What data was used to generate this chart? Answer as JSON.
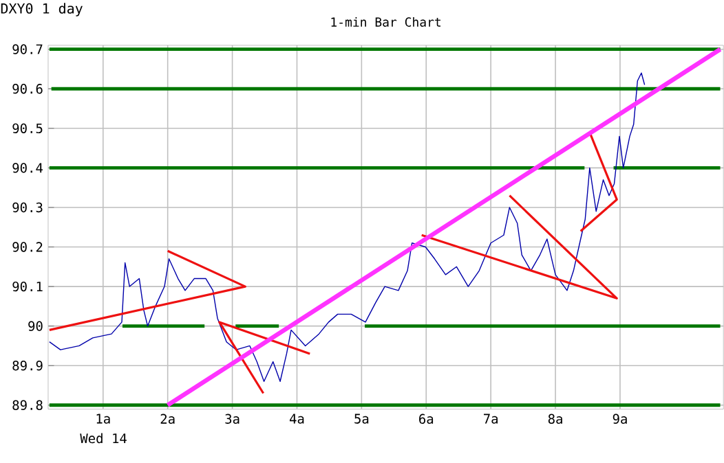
{
  "chart_data": {
    "type": "line",
    "title": "1-min Bar Chart",
    "subtitle": "DXY0 1 day",
    "xlabel": "Wed 14",
    "xlim": [
      0.15,
      10.6
    ],
    "ylim": [
      89.79,
      90.71
    ],
    "xticks": [
      {
        "value": 1,
        "label": "1a"
      },
      {
        "value": 2,
        "label": "2a"
      },
      {
        "value": 3,
        "label": "3a"
      },
      {
        "value": 4,
        "label": "4a"
      },
      {
        "value": 5,
        "label": "5a"
      },
      {
        "value": 6,
        "label": "6a"
      },
      {
        "value": 7,
        "label": "7a"
      },
      {
        "value": 8,
        "label": "8a"
      },
      {
        "value": 9,
        "label": "9a"
      }
    ],
    "yticks": [
      89.8,
      89.9,
      90,
      90.1,
      90.2,
      90.3,
      90.4,
      90.5,
      90.6,
      90.7
    ],
    "grid": true,
    "legend": false,
    "marker": "none",
    "line_style": "solid",
    "series": [
      {
        "color": "#007700",
        "x": [
          0.17,
          10.55
        ],
        "values": [
          90.7,
          90.7
        ]
      },
      {
        "color": "#007700",
        "x": [
          0.2,
          10.55
        ],
        "values": [
          90.6,
          90.6
        ]
      },
      {
        "color": "#007700",
        "x": [
          0.17,
          8.45
        ],
        "values": [
          90.4,
          90.4
        ]
      },
      {
        "color": "#007700",
        "x": [
          8.9,
          10.55
        ],
        "values": [
          90.4,
          90.4
        ]
      },
      {
        "color": "#007700",
        "x": [
          0.17,
          10.55
        ],
        "values": [
          89.8,
          89.8
        ]
      },
      {
        "color": "#007700",
        "x": [
          1.3,
          2.57
        ],
        "values": [
          90.0,
          90.0
        ]
      },
      {
        "color": "#007700",
        "x": [
          3.05,
          3.72
        ],
        "values": [
          90.0,
          90.0
        ]
      },
      {
        "color": "#007700",
        "x": [
          5.05,
          10.55
        ],
        "values": [
          90.0,
          90.0
        ]
      },
      {
        "color": "#0000aa",
        "x": [
          0.17,
          0.34,
          0.63,
          0.84,
          1.13,
          1.29,
          1.34,
          1.41,
          1.56,
          1.63,
          1.69,
          1.81,
          1.95,
          2.02,
          2.16,
          2.27,
          2.41,
          2.59,
          2.7,
          2.77,
          2.91,
          3.06,
          3.27,
          3.38,
          3.49,
          3.63,
          3.74,
          3.84,
          3.91,
          4.13,
          4.34,
          4.49,
          4.63,
          4.84,
          5.06,
          5.22,
          5.36,
          5.57,
          5.71,
          5.78,
          5.99,
          6.13,
          6.3,
          6.47,
          6.65,
          6.82,
          7.0,
          7.2,
          7.29,
          7.41,
          7.48,
          7.62,
          7.76,
          7.87,
          8.0,
          8.18,
          8.28,
          8.39,
          8.46,
          8.53,
          8.63,
          8.74,
          8.83,
          8.91,
          8.99,
          9.05,
          9.15,
          9.21,
          9.27,
          9.33,
          9.38
        ],
        "values": [
          89.96,
          89.94,
          89.95,
          89.97,
          89.98,
          90.01,
          90.16,
          90.1,
          90.12,
          90.04,
          90.0,
          90.05,
          90.1,
          90.17,
          90.12,
          90.09,
          90.12,
          90.12,
          90.09,
          90.02,
          89.96,
          89.94,
          89.95,
          89.91,
          89.86,
          89.91,
          89.86,
          89.93,
          89.99,
          89.95,
          89.98,
          90.01,
          90.03,
          90.03,
          90.01,
          90.06,
          90.1,
          90.09,
          90.14,
          90.21,
          90.2,
          90.17,
          90.13,
          90.15,
          90.1,
          90.14,
          90.21,
          90.23,
          90.3,
          90.26,
          90.18,
          90.14,
          90.18,
          90.22,
          90.13,
          90.09,
          90.14,
          90.22,
          90.27,
          90.4,
          90.29,
          90.37,
          90.33,
          90.36,
          90.48,
          90.4,
          90.48,
          90.51,
          90.62,
          90.64,
          90.61
        ]
      },
      {
        "color": "#ee1111",
        "x": [
          0.17,
          3.2,
          2.0
        ],
        "values": [
          89.99,
          90.1,
          90.19
        ]
      },
      {
        "color": "#ee1111",
        "x": [
          4.2,
          2.8,
          3.48
        ],
        "values": [
          89.93,
          90.01,
          89.83
        ]
      },
      {
        "color": "#ee1111",
        "x": [
          5.93,
          8.95,
          7.29
        ],
        "values": [
          90.23,
          90.07,
          90.33
        ]
      },
      {
        "color": "#ee1111",
        "x": [
          8.53,
          8.95,
          8.39
        ],
        "values": [
          90.49,
          90.32,
          90.24
        ]
      },
      {
        "color": "#ff33ff",
        "x": [
          2.0,
          10.55
        ],
        "values": [
          89.8,
          90.7
        ]
      }
    ]
  }
}
